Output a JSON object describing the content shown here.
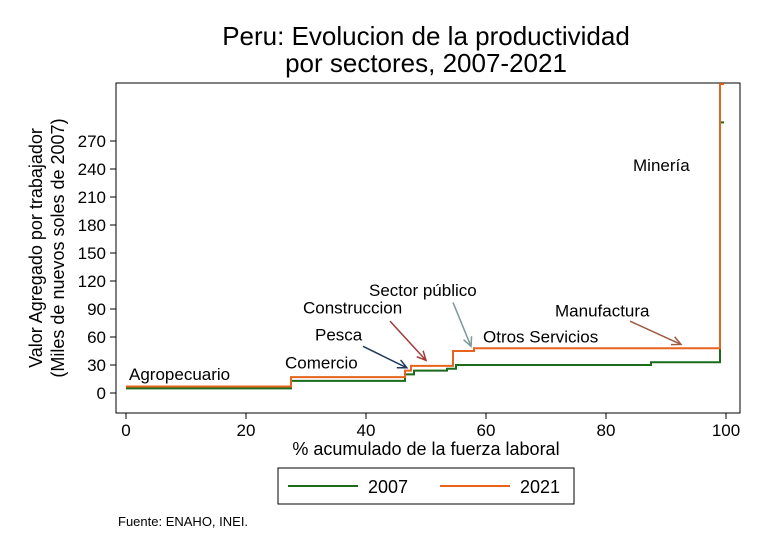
{
  "chart_data": {
    "type": "line",
    "step": true,
    "title_lines": [
      "Peru: Evolucion de la productividad",
      "por sectores, 2007-2021"
    ],
    "xlabel": "% acumulado de la fuerza laboral",
    "ylabel_lines": [
      "Valor Agregado por trabajador",
      "(Miles de nuevos soles de 2007)"
    ],
    "xlim": [
      0,
      100
    ],
    "ylim": [
      0,
      330
    ],
    "x_ticks": [
      0,
      20,
      40,
      60,
      80,
      100
    ],
    "y_ticks": [
      0,
      30,
      60,
      90,
      120,
      150,
      180,
      210,
      240,
      270
    ],
    "grid": false,
    "legend_position": "bottom",
    "series": [
      {
        "name": "2007",
        "color": "#1a6b1a",
        "x": [
          0,
          27.5,
          46.5,
          48,
          53.5,
          55,
          87.5,
          99
        ],
        "y": [
          5,
          13,
          20,
          24,
          26,
          30,
          33,
          290
        ]
      },
      {
        "name": "2021",
        "color": "#e8641e",
        "x": [
          0,
          27.5,
          46.5,
          47.5,
          54.5,
          58,
          99
        ],
        "y": [
          7,
          17,
          24,
          29,
          45,
          48,
          331
        ]
      }
    ],
    "annotations": [
      {
        "text": "Agropecuario",
        "x": 0.5,
        "y": 14
      },
      {
        "text": "Comercio",
        "x": 26.5,
        "y": 26
      },
      {
        "text": "Pesca",
        "x": 31.5,
        "y": 56
      },
      {
        "text": "Construccion",
        "x": 29.5,
        "y": 85
      },
      {
        "text": "Sector público",
        "x": 40.5,
        "y": 104
      },
      {
        "text": "Otros Servicios",
        "x": 59.5,
        "y": 54
      },
      {
        "text": "Manufactura",
        "x": 71.5,
        "y": 82
      },
      {
        "text": "Minería",
        "x": 84.5,
        "y": 238
      }
    ],
    "arrows": [
      {
        "label": "Pesca",
        "color": "#1e3a5c",
        "from": [
          39.5,
          50
        ],
        "to": [
          46.8,
          27
        ]
      },
      {
        "label": "Construccion",
        "color": "#a33a3a",
        "from": [
          44,
          77
        ],
        "to": [
          50,
          35
        ]
      },
      {
        "label": "Sector público",
        "color": "#7a9a9a",
        "from": [
          54.5,
          97
        ],
        "to": [
          57.5,
          50
        ]
      },
      {
        "label": "Manufactura",
        "color": "#a05a40",
        "from": [
          84,
          77
        ],
        "to": [
          92.5,
          52
        ]
      }
    ],
    "source_note": "Fuente: ENAHO, INEI."
  }
}
